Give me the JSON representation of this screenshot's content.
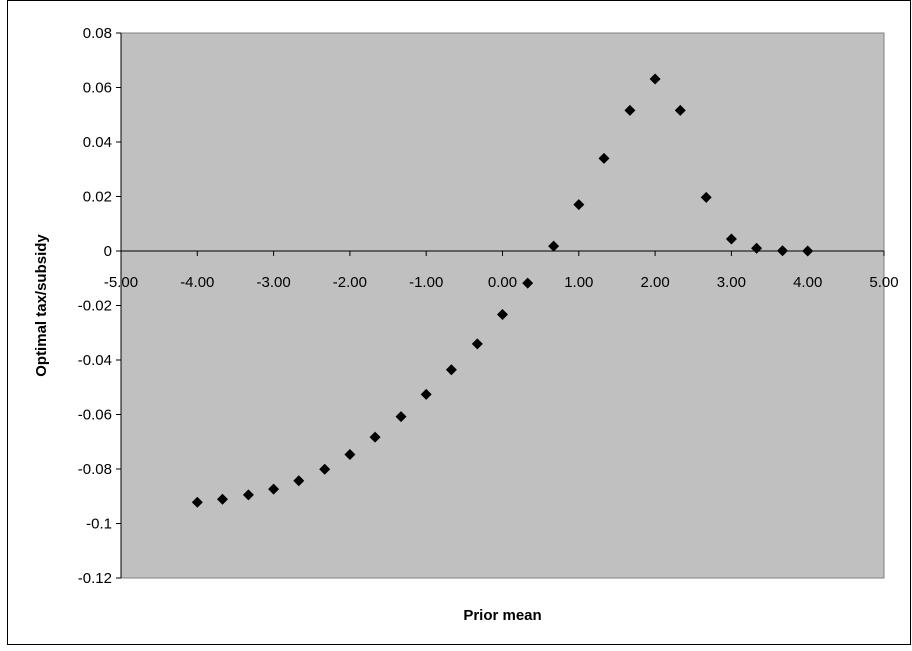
{
  "chart_data": {
    "type": "scatter",
    "title": "",
    "xlabel": "Prior mean",
    "ylabel": "Optimal tax/subsidy",
    "xlim": [
      -5,
      5
    ],
    "ylim": [
      -0.12,
      0.08
    ],
    "x_ticks": [
      "-5.00",
      "-4.00",
      "-3.00",
      "-2.00",
      "-1.00",
      "0.00",
      "1.00",
      "2.00",
      "3.00",
      "4.00",
      "5.00"
    ],
    "y_ticks": [
      "0.08",
      "0.06",
      "0.04",
      "0.02",
      "0",
      "-0.02",
      "-0.04",
      "-0.06",
      "-0.08",
      "-0.1",
      "-0.12"
    ],
    "grid": false,
    "marker": "diamond",
    "colors": {
      "plot_background": "#c0c0c0",
      "marker": "#000000",
      "axis": "#000000"
    },
    "series": [
      {
        "points": [
          [
            -4.0,
            -0.0922
          ],
          [
            -3.67,
            -0.0911
          ],
          [
            -3.33,
            -0.0895
          ],
          [
            -3.0,
            -0.0874
          ],
          [
            -2.67,
            -0.0843
          ],
          [
            -2.33,
            -0.0801
          ],
          [
            -2.0,
            -0.0747
          ],
          [
            -1.67,
            -0.0683
          ],
          [
            -1.33,
            -0.0608
          ],
          [
            -1.0,
            -0.0526
          ],
          [
            -0.67,
            -0.0436
          ],
          [
            -0.33,
            -0.0341
          ],
          [
            0.0,
            -0.0233
          ],
          [
            0.33,
            -0.0118
          ],
          [
            0.67,
            0.0018
          ],
          [
            1.0,
            0.017
          ],
          [
            1.33,
            0.034
          ],
          [
            1.67,
            0.0516
          ],
          [
            2.0,
            0.0631
          ],
          [
            2.33,
            0.0516
          ],
          [
            2.67,
            0.0197
          ],
          [
            3.0,
            0.0044
          ],
          [
            3.33,
            0.001
          ],
          [
            3.67,
            0.0001
          ],
          [
            4.0,
            0.0
          ]
        ]
      }
    ]
  }
}
